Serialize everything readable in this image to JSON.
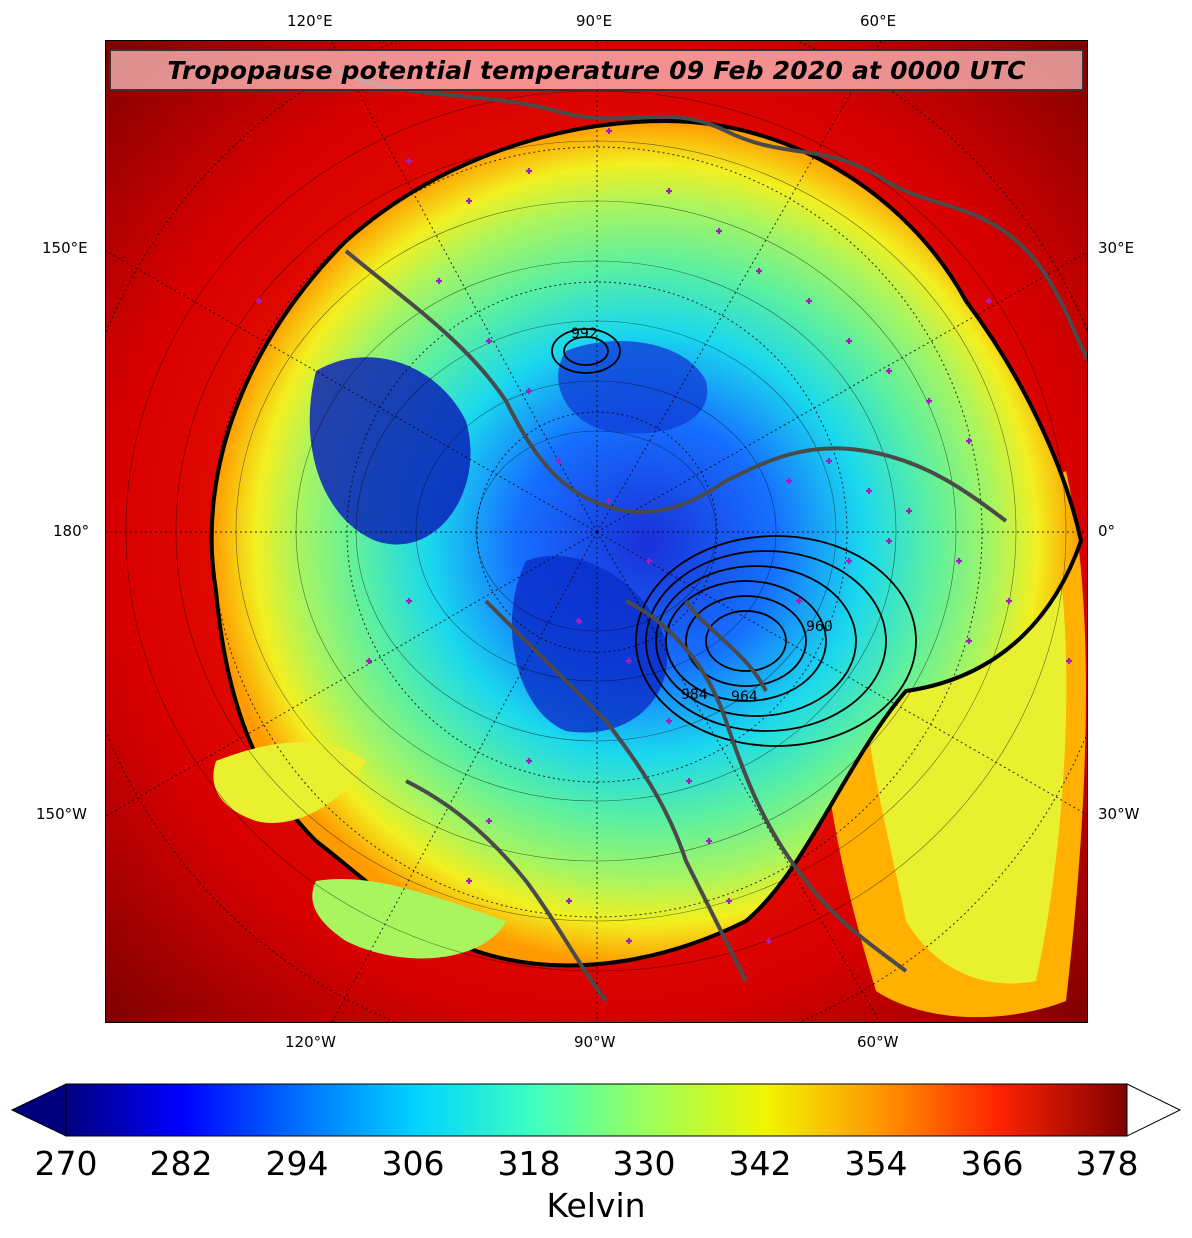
{
  "title": "Tropopause potential temperature 09 Feb 2020 at 0000 UTC",
  "map": {
    "projection": "polar stereographic",
    "field": "tropopause potential temperature",
    "contour_labels": [
      "992",
      "960",
      "964",
      "984"
    ],
    "top_lon_labels": [
      "120°E",
      "90°E",
      "60°E"
    ],
    "bottom_lon_labels": [
      "120°W",
      "90°W",
      "60°W"
    ],
    "left_lon_labels": [
      "150°E",
      "180°",
      "150°W"
    ],
    "right_lon_labels": [
      "30°E",
      "0°",
      "30°W"
    ],
    "coastline_color": "#4a4a4a",
    "marker_color": "#a020c0"
  },
  "colorbar": {
    "label": "Kelvin",
    "ticks": [
      "270",
      "282",
      "294",
      "306",
      "318",
      "330",
      "342",
      "354",
      "366",
      "378"
    ],
    "colors": [
      "#00007f",
      "#0000ff",
      "#0080ff",
      "#00e5ff",
      "#4dffb3",
      "#b3ff4d",
      "#ffe600",
      "#ff8000",
      "#ff1a00",
      "#800000"
    ]
  }
}
